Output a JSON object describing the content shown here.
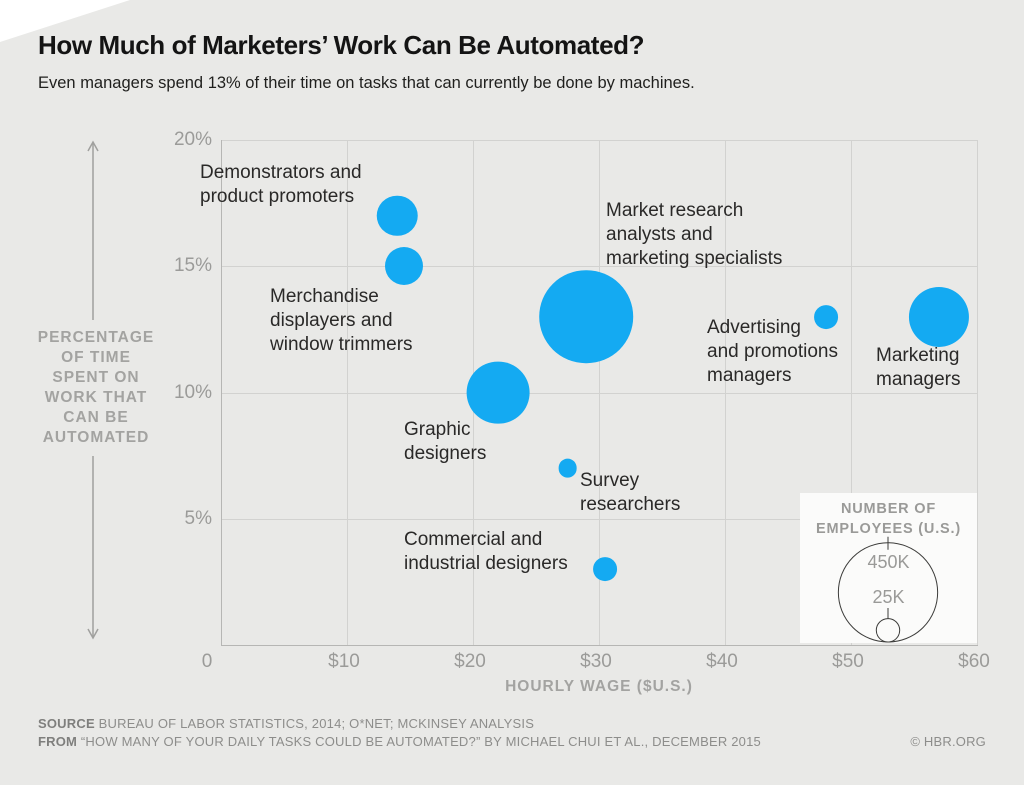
{
  "page": {
    "background": "#e9e9e7",
    "accent_blue": "#14aaf2"
  },
  "header": {
    "title": "How Much of Marketers’ Work Can Be Automated?",
    "subtitle": "Even managers spend 13% of their time on tasks that can currently be done by machines."
  },
  "chart_data": {
    "type": "bubble",
    "title": "How Much of Marketers’ Work Can Be Automated?",
    "xlabel": "HOURLY WAGE ($U.S.)",
    "ylabel": "PERCENTAGE OF TIME SPENT ON WORK THAT CAN BE AUTOMATED",
    "ylabel_lines": [
      "PERCENTAGE",
      "OF TIME",
      "SPENT ON",
      "WORK THAT",
      "CAN BE",
      "AUTOMATED"
    ],
    "xlim": [
      0,
      60
    ],
    "ylim": [
      0,
      20
    ],
    "grid": true,
    "bubble_color": "#14aaf2",
    "x_ticks": [
      {
        "value": 0,
        "label": "0"
      },
      {
        "value": 10,
        "label": "$10"
      },
      {
        "value": 20,
        "label": "$20"
      },
      {
        "value": 30,
        "label": "$30"
      },
      {
        "value": 40,
        "label": "$40"
      },
      {
        "value": 50,
        "label": "$50"
      },
      {
        "value": 60,
        "label": "$60"
      }
    ],
    "y_ticks": [
      {
        "value": 20,
        "label": "20%"
      },
      {
        "value": 15,
        "label": "15%"
      },
      {
        "value": 10,
        "label": "10%"
      },
      {
        "value": 5,
        "label": "5%"
      }
    ],
    "points": [
      {
        "id": "demonstrators",
        "label": "Demonstrators and product promoters",
        "label_lines": [
          "Demonstrators and",
          "product promoters"
        ],
        "hourly_wage_usd": 14,
        "pct_time_automatable": 17,
        "employees_est": 75000
      },
      {
        "id": "merchandise-displayers",
        "label": "Merchandise displayers and window trimmers",
        "label_lines": [
          "Merchandise",
          "displayers and",
          "window trimmers"
        ],
        "hourly_wage_usd": 14.5,
        "pct_time_automatable": 15,
        "employees_est": 66000
      },
      {
        "id": "market-research-analysts",
        "label": "Market research analysts and marketing specialists",
        "label_lines": [
          "Market research",
          "analysts and",
          "marketing specialists"
        ],
        "hourly_wage_usd": 29,
        "pct_time_automatable": 13,
        "employees_est": 400000
      },
      {
        "id": "graphic-designers",
        "label": "Graphic designers",
        "label_lines": [
          "Graphic",
          "designers"
        ],
        "hourly_wage_usd": 22,
        "pct_time_automatable": 10,
        "employees_est": 180000
      },
      {
        "id": "survey-researchers",
        "label": "Survey researchers",
        "label_lines": [
          "Survey",
          "researchers"
        ],
        "hourly_wage_usd": 27.5,
        "pct_time_automatable": 7,
        "employees_est": 16000
      },
      {
        "id": "commercial-industrial-designers",
        "label": "Commercial and industrial designers",
        "label_lines": [
          "Commercial and",
          "industrial designers"
        ],
        "hourly_wage_usd": 30.5,
        "pct_time_automatable": 3,
        "employees_est": 26000
      },
      {
        "id": "advertising-promotions-managers",
        "label": "Advertising and promotions managers",
        "label_lines": [
          "Advertising",
          "and promotions",
          "managers"
        ],
        "hourly_wage_usd": 48,
        "pct_time_automatable": 13,
        "employees_est": 26000
      },
      {
        "id": "marketing-managers",
        "label": "Marketing managers",
        "label_lines": [
          "Marketing",
          "managers"
        ],
        "hourly_wage_usd": 57,
        "pct_time_automatable": 13,
        "employees_est": 165000
      }
    ],
    "legend": {
      "position": "bottom-right",
      "title": "NUMBER OF EMPLOYEES (U.S.)",
      "title_lines": [
        "NUMBER OF",
        "EMPLOYEES (U.S.)"
      ],
      "entries": [
        {
          "label": "450K",
          "value": 450000
        },
        {
          "label": "25K",
          "value": 25000
        }
      ]
    }
  },
  "footer": {
    "source_label": "SOURCE",
    "source_text": "BUREAU OF LABOR STATISTICS, 2014; O*NET; MCKINSEY ANALYSIS",
    "from_label": "FROM",
    "from_text": "“HOW MANY OF YOUR DAILY TASKS COULD BE AUTOMATED?” BY MICHAEL CHUI ET AL., DECEMBER 2015",
    "credit": "© HBR.ORG"
  }
}
